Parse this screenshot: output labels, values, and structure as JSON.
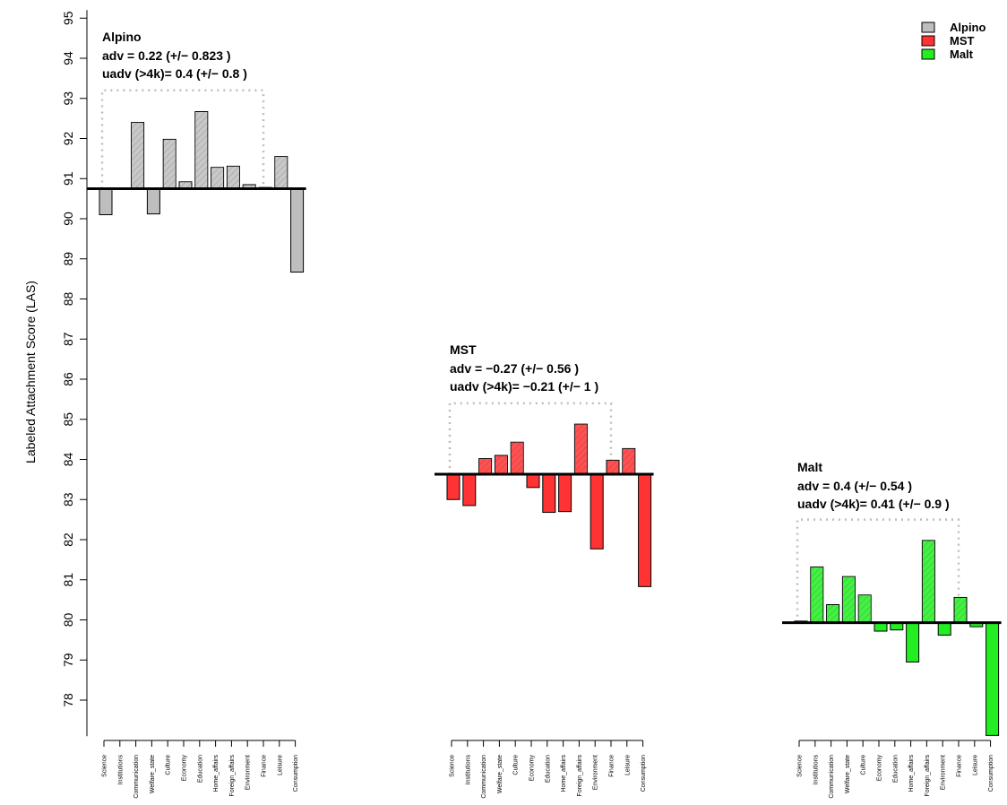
{
  "chart_data": {
    "type": "bar",
    "ylabel": "Labeled Attachment Score (LAS)",
    "ylim": [
      77.1,
      95.2
    ],
    "yticks": [
      78,
      79,
      80,
      81,
      82,
      83,
      84,
      85,
      86,
      87,
      88,
      89,
      90,
      91,
      92,
      93,
      94,
      95
    ],
    "categories": [
      "Science",
      "Institutions",
      "Communication",
      "Welfare_state",
      "Culture",
      "Economy",
      "Education",
      "Home_affairs",
      "Foreign_affairs",
      "Environment",
      "Finance",
      "Leisure",
      "Consumption"
    ],
    "legend": {
      "placement": "top-right",
      "entries": [
        {
          "label": "Alpino",
          "color": "#bebebe"
        },
        {
          "label": "MST",
          "color": "#ff3333"
        },
        {
          "label": "Malt",
          "color": "#22ee22"
        }
      ]
    },
    "panels": [
      {
        "name": "Alpino",
        "color": "#bebebe",
        "baseline": 90.75,
        "values": [
          90.1,
          90.75,
          92.4,
          90.12,
          91.98,
          90.92,
          92.67,
          91.28,
          91.31,
          90.85,
          90.78,
          91.55,
          88.67
        ],
        "title": "Alpino",
        "adv_text": "adv = 0.22 (+/− 0.823 )",
        "uadv_text": "uadv (>4k)= 0.4 (+/− 0.8 )",
        "bracket_top": 93.2
      },
      {
        "name": "MST",
        "color": "#ff3333",
        "baseline": 83.63,
        "values": [
          83.0,
          82.85,
          84.02,
          84.1,
          84.43,
          83.3,
          82.68,
          82.7,
          84.88,
          81.77,
          83.98,
          84.27,
          80.83
        ],
        "title": "MST",
        "adv_text": "adv = −0.27 (+/− 0.56 )",
        "uadv_text": "uadv (>4k)= −0.21 (+/− 1 )",
        "bracket_top": 85.4
      },
      {
        "name": "Malt",
        "color": "#22ee22",
        "baseline": 79.93,
        "values": [
          79.97,
          81.32,
          80.38,
          81.08,
          80.62,
          79.72,
          79.75,
          78.95,
          81.98,
          79.62,
          80.56,
          79.83,
          77.12
        ],
        "title": "Malt",
        "adv_text": "adv = 0.4 (+/− 0.54 )",
        "uadv_text": "uadv (>4k)= 0.41 (+/− 0.9 )",
        "bracket_top": 82.5
      }
    ]
  }
}
